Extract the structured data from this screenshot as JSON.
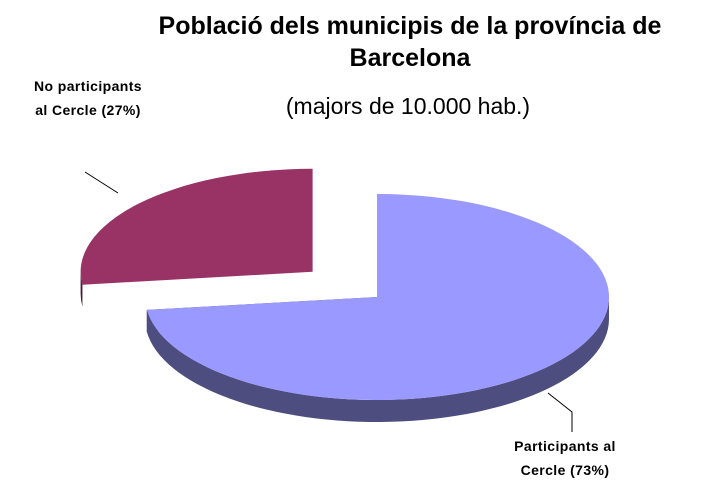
{
  "chart_data": {
    "type": "pie",
    "title": "Població dels municipis de la província de Barcelona",
    "subtitle": "(majors de 10.000 hab.)",
    "values": [
      73,
      27
    ],
    "value_labels": [
      "Participants al Cercle (73%)",
      "No participants al Cercle (27%)"
    ],
    "colors": [
      "#9999ff",
      "#993366"
    ],
    "exploded": [
      false,
      true
    ],
    "three_d": true
  }
}
